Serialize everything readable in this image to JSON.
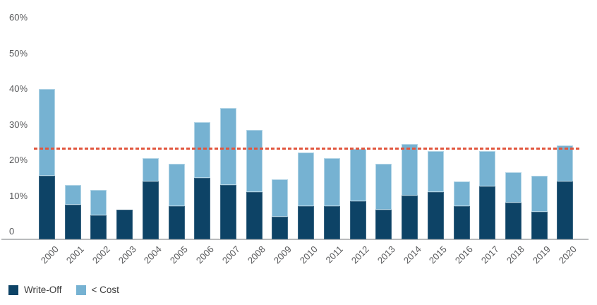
{
  "chart_data": {
    "type": "bar",
    "stacked": true,
    "categories": [
      "2000",
      "2001",
      "2002",
      "2003",
      "2004",
      "2005",
      "2006",
      "2007",
      "2008",
      "2009",
      "2010",
      "2011",
      "2012",
      "2013",
      "2014",
      "2015",
      "2016",
      "2017",
      "2018",
      "2019",
      "2020"
    ],
    "series": [
      {
        "name": "Write-Off",
        "color": "#0d4366",
        "values": [
          15.5,
          7.5,
          4.5,
          6,
          14,
          7,
          15,
          13,
          11,
          4,
          7,
          7,
          8.5,
          6,
          10,
          11,
          7,
          12.5,
          8,
          5.5,
          14
        ]
      },
      {
        "name": "< Cost",
        "color": "#76b2d2",
        "values": [
          24.5,
          5.5,
          7,
          0,
          6.5,
          12,
          15.5,
          21.5,
          17.5,
          10.5,
          15,
          13.5,
          14.5,
          13,
          14.5,
          11.5,
          7,
          10,
          8.5,
          10,
          10
        ]
      }
    ],
    "y_ticks": [
      {
        "label": "60%",
        "value": 60
      },
      {
        "label": "50%",
        "value": 50
      },
      {
        "label": "40%",
        "value": 40
      },
      {
        "label": "30%",
        "value": 30
      },
      {
        "label": "20%",
        "value": 20
      },
      {
        "label": "10%",
        "value": 10
      },
      {
        "label": "0",
        "value": 0
      }
    ],
    "ylim": [
      0,
      62
    ],
    "grid": false,
    "reference_line": {
      "value": 23.1,
      "style": "dashed",
      "color": "#e1563e"
    },
    "legend_position": "bottom-left"
  }
}
